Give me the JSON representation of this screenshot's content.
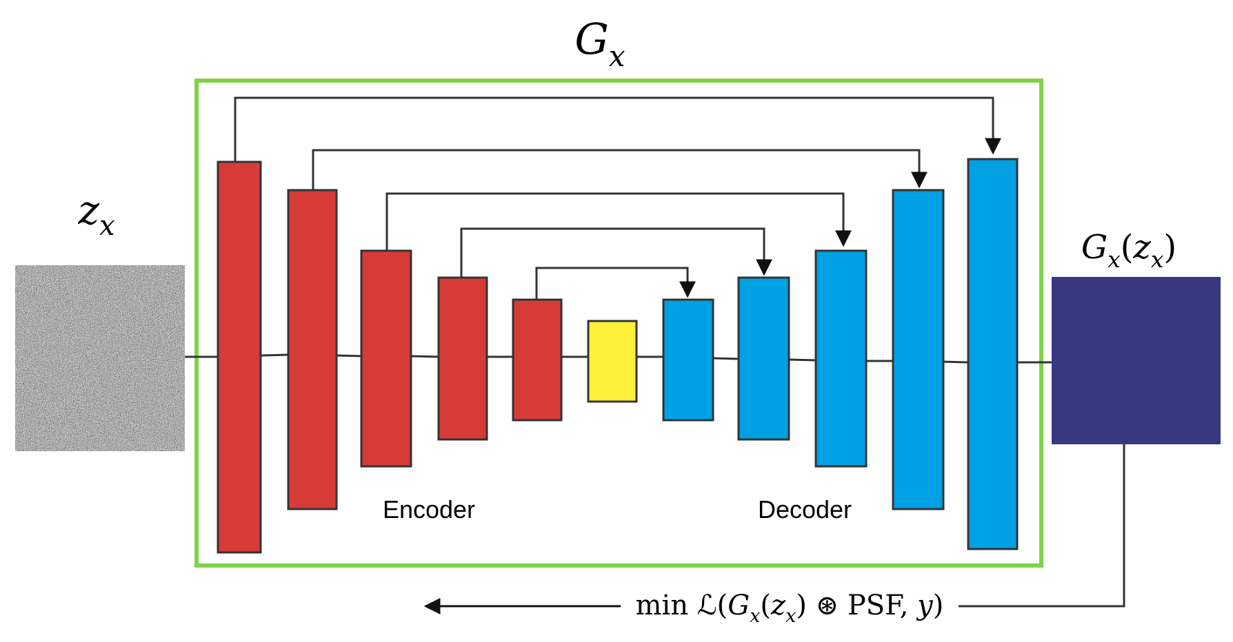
{
  "title": {
    "main": "G",
    "sub": "x"
  },
  "input": {
    "main": "z",
    "sub": "x"
  },
  "output": {
    "label_parts": [
      {
        "t": "G",
        "style": "math"
      },
      {
        "t": "x",
        "style": "sub"
      },
      {
        "t": "(",
        "style": "up"
      },
      {
        "t": "z",
        "style": "math"
      },
      {
        "t": "x",
        "style": "sub"
      },
      {
        "t": ")",
        "style": "up"
      }
    ]
  },
  "encoder_label": "Encoder",
  "decoder_label": "Decoder",
  "loss": {
    "parts": [
      {
        "t": "min",
        "style": "up"
      },
      {
        "t": "ℒ(",
        "style": "up"
      },
      {
        "t": "G",
        "style": "math"
      },
      {
        "t": "x",
        "style": "sub"
      },
      {
        "t": "(",
        "style": "up"
      },
      {
        "t": "z",
        "style": "math"
      },
      {
        "t": "x",
        "style": "sub"
      },
      {
        "t": ") ⊛ PSF, ",
        "style": "up"
      },
      {
        "t": "y",
        "style": "math"
      },
      {
        "t": ")",
        "style": "up"
      }
    ]
  },
  "colors": {
    "generator_box": "#7ed348",
    "encoder": "#d63b38",
    "bottleneck": "#fff03b",
    "decoder": "#00a0e4",
    "output": "#383880",
    "wire": "#333333"
  },
  "layers": {
    "encoder_count": 5,
    "bottleneck_count": 1,
    "decoder_count": 5
  }
}
